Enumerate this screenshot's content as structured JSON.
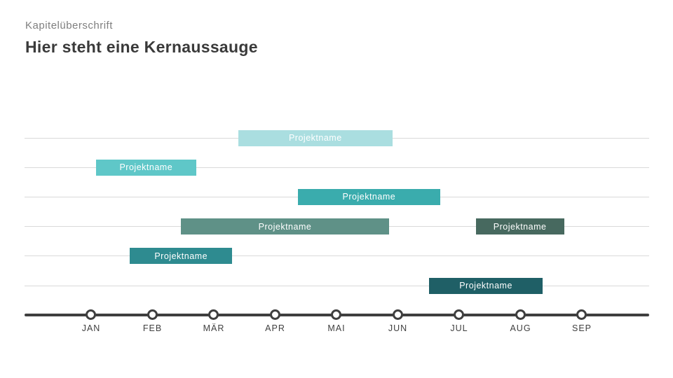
{
  "slide": {
    "kicker": "Kapitelüberschrift",
    "title": "Hier steht eine Kernaussauge"
  },
  "colors": {
    "background": "#ffffff",
    "kicker_text": "#7f7f7f",
    "title_text": "#3a3a3a",
    "gridline": "#d9d9d9",
    "axis": "#3f3f3f",
    "bar_label_text": "#ffffff"
  },
  "chart_data": {
    "type": "bar",
    "subtype": "gantt-timeline",
    "title": "Hier steht eine Kernaussauge",
    "grid": true,
    "rows": 6,
    "month_axis": {
      "labels": [
        "JAN",
        "FEB",
        "MÄR",
        "APR",
        "MAI",
        "JUN",
        "JUL",
        "AUG",
        "SEP"
      ],
      "first_label_month": 1,
      "axis_range_months": [
        -0.09,
        10.1
      ],
      "marker_style": "open-circle"
    },
    "bars": [
      {
        "label": "Projektname",
        "row": 1,
        "start_month": 3.4,
        "end_month": 5.91,
        "color": "#aadee0"
      },
      {
        "label": "Projektname",
        "row": 2,
        "start_month": 1.08,
        "end_month": 2.71,
        "color": "#5fc7c8"
      },
      {
        "label": "Projektname",
        "row": 3,
        "start_month": 4.37,
        "end_month": 6.69,
        "color": "#3aacad"
      },
      {
        "label": "Projektname",
        "row": 4,
        "start_month": 2.46,
        "end_month": 5.86,
        "color": "#5f9187"
      },
      {
        "label": "Projektname",
        "row": 4,
        "start_month": 7.27,
        "end_month": 8.71,
        "color": "#47695f"
      },
      {
        "label": "Projektname",
        "row": 5,
        "start_month": 1.63,
        "end_month": 3.3,
        "color": "#2e8b90"
      },
      {
        "label": "Projektname",
        "row": 6,
        "start_month": 6.51,
        "end_month": 8.36,
        "color": "#1f5f66"
      }
    ]
  }
}
